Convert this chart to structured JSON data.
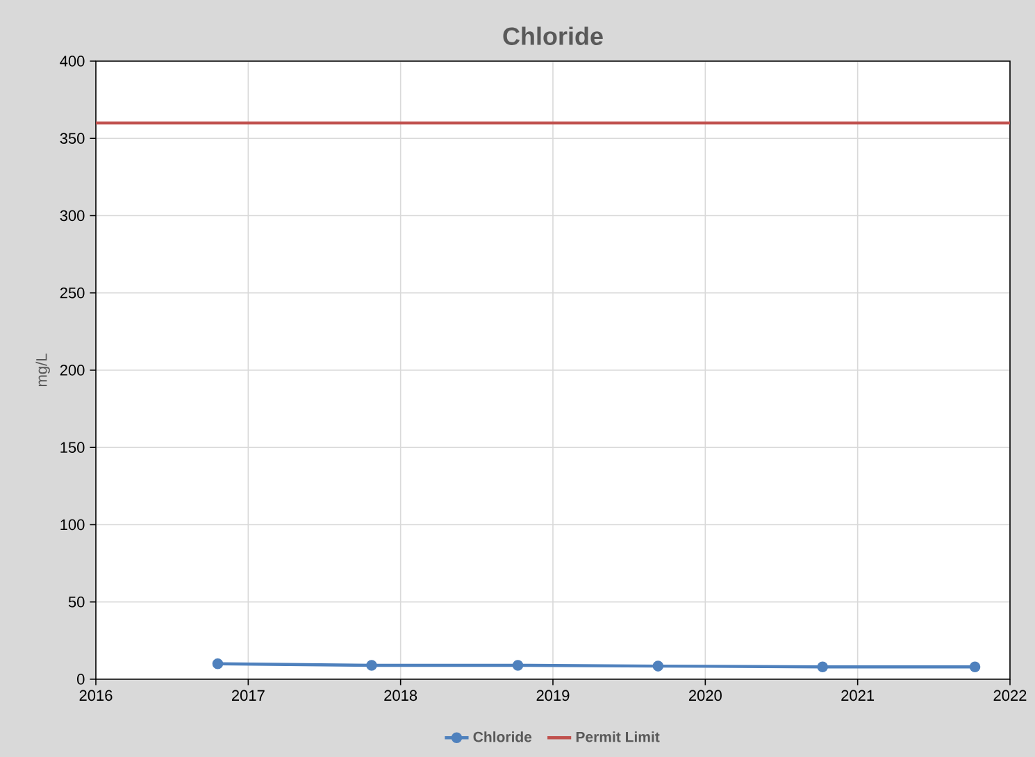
{
  "chart_data": {
    "type": "line",
    "title": "Chloride",
    "ylabel": "mg/L",
    "xlim": [
      2016,
      2022
    ],
    "xticks": [
      2016,
      2017,
      2018,
      2019,
      2020,
      2021,
      2022
    ],
    "ylim": [
      0,
      400
    ],
    "yticks": [
      0,
      50,
      100,
      150,
      200,
      250,
      300,
      350,
      400
    ],
    "grid": true,
    "legend": "bottom",
    "series": [
      {
        "name": "Chloride",
        "color": "#4f81bd",
        "marker": "circle",
        "x": [
          2016.8,
          2017.81,
          2018.77,
          2019.69,
          2020.77,
          2021.77
        ],
        "values": [
          10,
          9,
          9,
          8.5,
          8,
          8
        ]
      },
      {
        "name": "Permit Limit",
        "color": "#c0504d",
        "marker": "none",
        "x": [
          2016,
          2022
        ],
        "values": [
          360,
          360
        ]
      }
    ]
  }
}
